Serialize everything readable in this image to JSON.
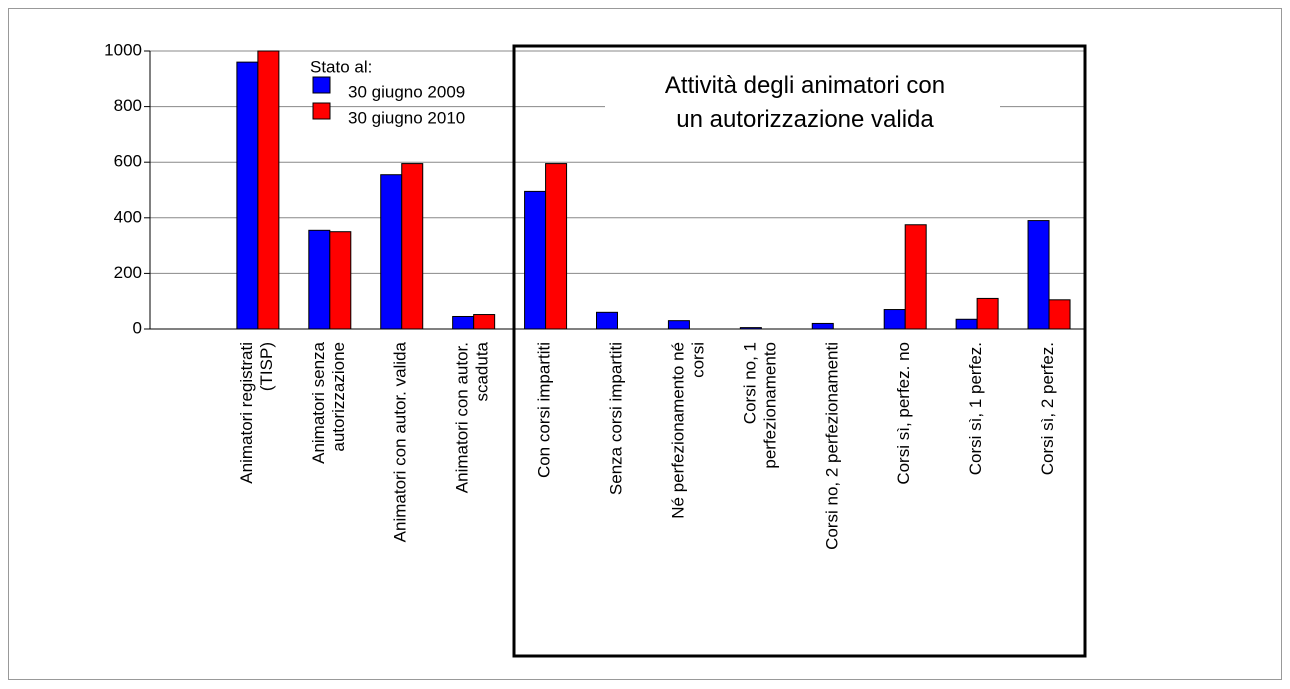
{
  "chart_data": {
    "type": "bar",
    "title": "Attività degli animatori con un autorizzazione valida",
    "legend_title": "Stato al:",
    "categories": [
      null,
      "Animatori registrati (TISP)",
      "Animatori senza autorizzazione",
      "Animatori con autor. valida",
      "Animatori con autor. scaduta",
      "Con corsi impartiti",
      "Senza corsi impartiti",
      "Né perfezionamento né corsi",
      "Corsi no, 1 perfezionamento",
      "Corsi no, 2 perfezionamenti",
      "Corsi sì, perfez. no",
      "Corsi sì, 1 perfez.",
      "Corsi sì, 2 perfez."
    ],
    "series": [
      {
        "name": "30 giugno 2009",
        "color": "#0000ff",
        "values": [
          null,
          960,
          355,
          555,
          45,
          495,
          60,
          30,
          5,
          20,
          70,
          35,
          390
        ]
      },
      {
        "name": "30 giugno 2010",
        "color": "#ff0000",
        "values": [
          null,
          1000,
          350,
          595,
          52,
          595,
          0,
          0,
          0,
          0,
          375,
          110,
          105
        ]
      }
    ],
    "ylim": [
      0,
      1000
    ],
    "yticks": [
      0,
      200,
      400,
      600,
      800,
      1000
    ],
    "grid": true,
    "legend": "upper left"
  }
}
